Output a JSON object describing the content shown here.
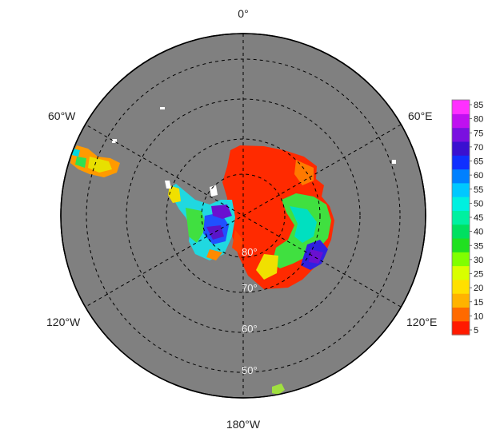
{
  "map": {
    "projection": "south-polar-stereographic",
    "background_color": "#808080",
    "meridian_labels": [
      "0°",
      "60°E",
      "120°E",
      "180°W",
      "120°W",
      "60°W"
    ],
    "latitude_labels": [
      "80°",
      "70°",
      "60°",
      "50°"
    ],
    "gridlines": "dashed"
  },
  "colorbar": {
    "ticks": [
      "85",
      "80",
      "75",
      "70",
      "65",
      "60",
      "55",
      "50",
      "45",
      "40",
      "35",
      "30",
      "25",
      "20",
      "15",
      "10",
      "5"
    ],
    "colors": [
      "#ff1a00",
      "#ff6a00",
      "#ffb300",
      "#ffe000",
      "#d9ff00",
      "#80ff00",
      "#20e020",
      "#00e060",
      "#00f0a0",
      "#00f0e0",
      "#00c8ff",
      "#0080ff",
      "#1030ff",
      "#3a10d0",
      "#7a10e0",
      "#c010f0",
      "#ff30ff"
    ]
  }
}
